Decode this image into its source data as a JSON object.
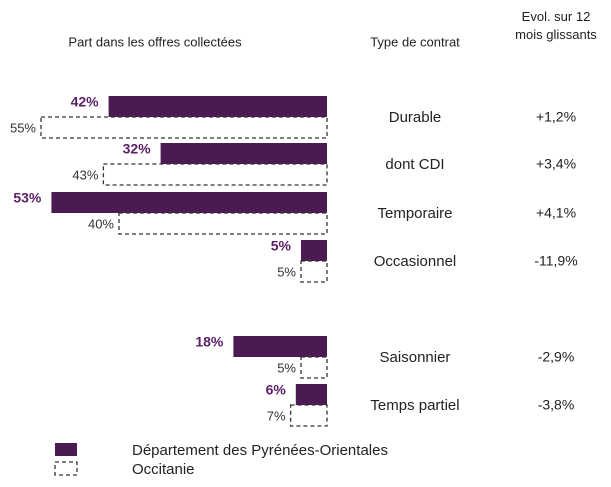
{
  "chart_data": {
    "type": "bar",
    "orientation": "horizontal",
    "bar_header": "Part dans les offres collectées",
    "category_header": "Type de contrat",
    "categories": [
      "Durable",
      "dont CDI",
      "Temporaire",
      "Occasionnel",
      "Saisonnier",
      "Temps partiel"
    ],
    "series": [
      {
        "name": "Département des Pyrénées-Orientales",
        "color": "#4b1a52",
        "style": "solid",
        "values": [
          42,
          32,
          53,
          5,
          18,
          6
        ],
        "value_labels": [
          "42%",
          "32%",
          "53%",
          "5%",
          "18%",
          "6%"
        ]
      },
      {
        "name": "Occitanie",
        "color": "#333333",
        "style": "dashed",
        "values": [
          55,
          43,
          40,
          5,
          5,
          7
        ],
        "value_labels": [
          "55%",
          "43%",
          "40%",
          "5%",
          "5%",
          "7%"
        ]
      }
    ],
    "evolution": {
      "header": "Evol. sur 12 mois glissants",
      "values": [
        1.2,
        3.4,
        4.1,
        -11.9,
        -2.9,
        -3.8
      ],
      "value_labels": [
        "+1,2%",
        "+3,4%",
        "+4,1%",
        "-11,9%",
        "-2,9%",
        "-3,8%"
      ]
    }
  }
}
